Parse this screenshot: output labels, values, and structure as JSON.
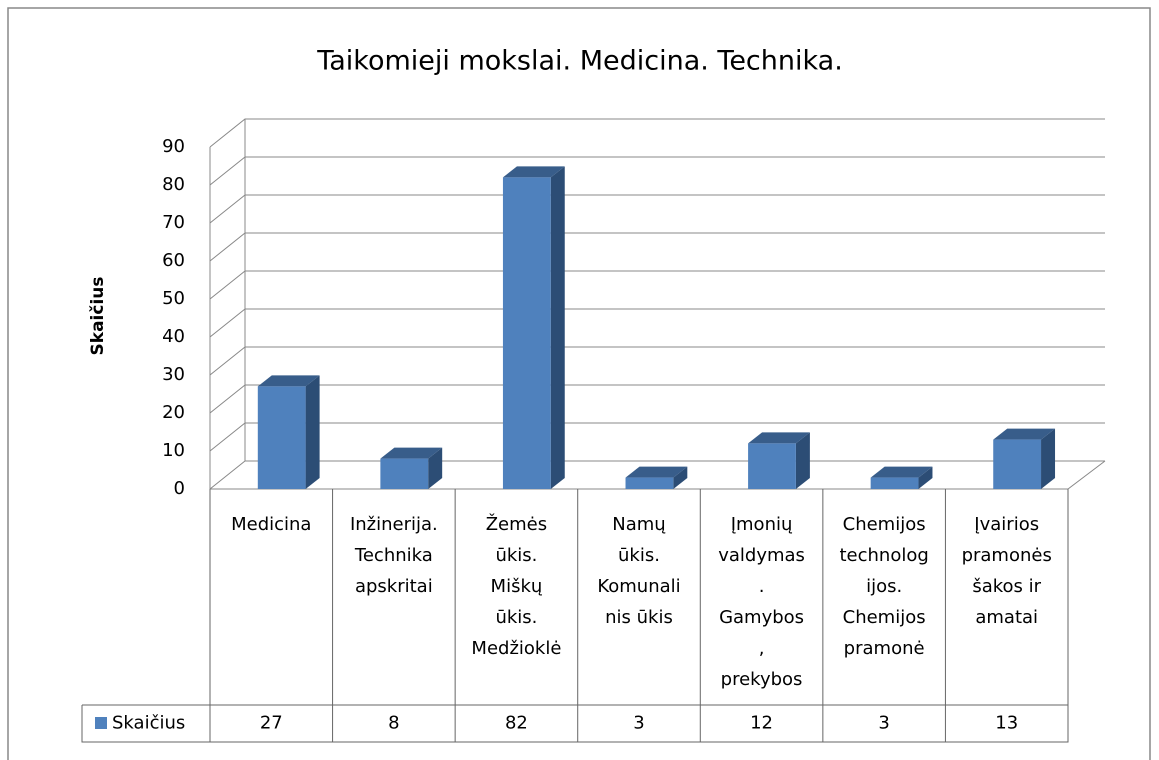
{
  "chart_data": {
    "type": "bar3d",
    "title": "Taikomieji mokslai. Medicina. Technika.",
    "y_label": "Skaičius",
    "categories": [
      "Medicina",
      "Inžinerija. Technika apskritai",
      "Žemės ūkis. Miškų ūkis. Medžioklė",
      "Namų ūkis. Komunalinis ūkis",
      "Įmonių valdymas. Gamybos, prekybos",
      "Chemijos technologijos. Chemijos pramonė",
      "Įvairios pramonės šakos ir amatai"
    ],
    "series": [
      {
        "name": "Skaičius",
        "color": "#4f81bd",
        "values": [
          27,
          8,
          82,
          3,
          12,
          3,
          13
        ]
      }
    ],
    "ylim": [
      0,
      90
    ],
    "yticks": [
      0,
      10,
      20,
      30,
      40,
      50,
      60,
      70,
      80,
      90
    ],
    "grid": true,
    "data_table": true
  }
}
